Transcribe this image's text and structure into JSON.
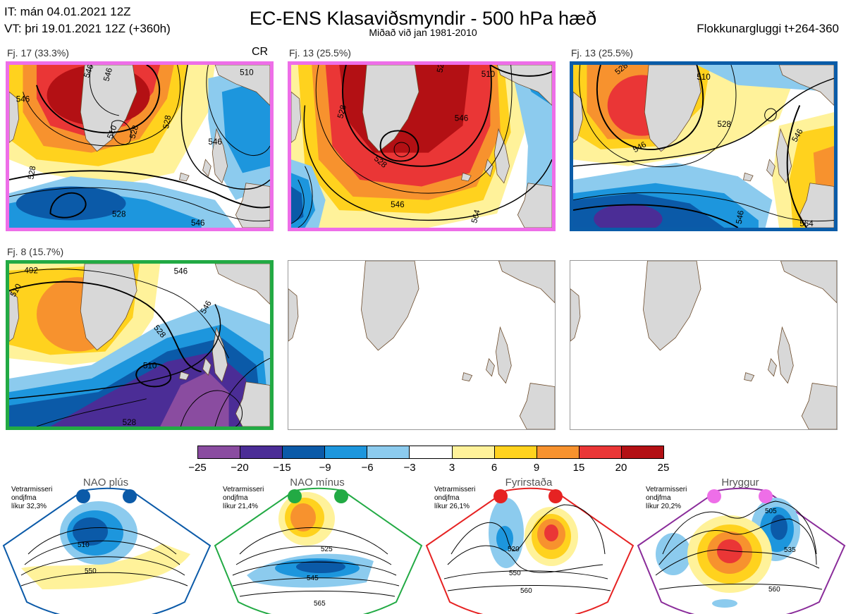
{
  "header": {
    "init_time": "IT: mán 04.01.2021 12Z",
    "valid_time": "VT: þri 19.01.2021 12Z  (+360h)",
    "title": "EC-ENS Klasaviðsmyndir - 500 hPa hæð",
    "subtitle": "Miðað við jan 1981-2010",
    "window": "Flokkunargluggi t+264-360"
  },
  "panels": [
    {
      "label": "Fj. 17 (33.3%)",
      "border": "#ee6ee8",
      "cr": "CR",
      "contours": [
        "546",
        "510",
        "528",
        "546",
        "546",
        "528",
        "546",
        "528",
        "528",
        "510",
        "546"
      ]
    },
    {
      "label": "Fj. 13 (25.5%)",
      "border": "#ee6ee8",
      "contours": [
        "510",
        "528",
        "546",
        "546",
        "528",
        "564",
        "528"
      ]
    },
    {
      "label": "Fj. 13 (25.5%)",
      "border": "#0a5ca8",
      "contours": [
        "528",
        "510",
        "528",
        "546",
        "546",
        "546",
        "564"
      ]
    },
    {
      "label": "Fj. 8 (15.7%)",
      "border": "#22aa44",
      "contours": [
        "492",
        "510",
        "546",
        "528",
        "510",
        "528",
        "546"
      ]
    },
    {
      "label": "",
      "border": "none"
    },
    {
      "label": "",
      "border": "none"
    }
  ],
  "colorbar": {
    "colors": [
      "#8a4ca0",
      "#4b2d96",
      "#0b5aa8",
      "#1d96dd",
      "#8ccbee",
      "#ffffff",
      "#fff29a",
      "#ffd21e",
      "#f7922e",
      "#ea3636",
      "#b31014"
    ],
    "ticks": [
      "−25",
      "−20",
      "−15",
      "−9",
      "−6",
      "−3",
      "3",
      "6",
      "9",
      "15",
      "20",
      "25"
    ]
  },
  "regimes": [
    {
      "title": "NAO plús",
      "color": "#0b5aa8",
      "edge": "#0b5aa8",
      "note": [
        "Vetrarmisseri",
        "ondjfma",
        "líkur 32,3%"
      ],
      "contours": [
        "510",
        "550"
      ]
    },
    {
      "title": "NAO mínus",
      "color": "#22aa44",
      "edge": "#22aa44",
      "note": [
        "Vetrarmisseri",
        "ondjfma",
        "líkur 21,4%"
      ],
      "contours": [
        "525",
        "545",
        "565"
      ]
    },
    {
      "title": "Fyrirstaða",
      "color": "#e62222",
      "edge": "#e62222",
      "note": [
        "Vetrarmisseri",
        "ondjfma",
        "líkur 26,1%"
      ],
      "contours": [
        "520",
        "550",
        "560"
      ]
    },
    {
      "title": "Hryggur",
      "color": "#ee6ee8",
      "edge": "#8a2c9a",
      "note": [
        "Vetrarmisseri",
        "ondjfma",
        "líkur 20,2%"
      ],
      "contours": [
        "505",
        "535",
        "560"
      ]
    }
  ]
}
